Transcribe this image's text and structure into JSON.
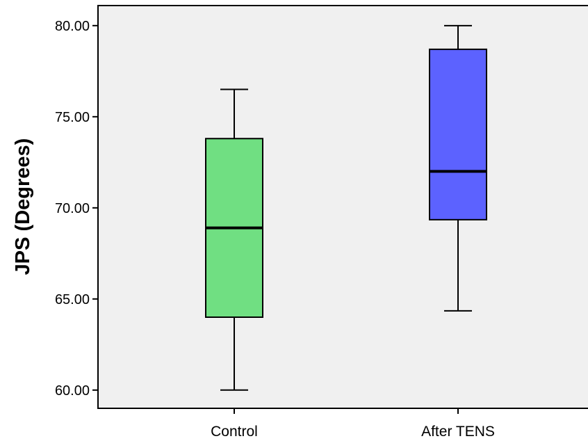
{
  "chart_data": {
    "type": "boxplot",
    "title": "",
    "xlabel": "",
    "ylabel": "JPS (Degrees)",
    "ylim": [
      59.0,
      81.1
    ],
    "yticks": [
      "60.00",
      "65.00",
      "70.00",
      "75.00",
      "80.00"
    ],
    "grid": false,
    "legend": "none",
    "categories": [
      "Control",
      "After TENS"
    ],
    "boxes": [
      {
        "category": "Control",
        "whisker_low": 60.0,
        "q1": 64.0,
        "median": 68.9,
        "q3": 73.8,
        "whisker_high": 76.5,
        "color": "#70df82"
      },
      {
        "category": "After TENS",
        "whisker_low": 64.35,
        "q1": 69.35,
        "median": 72.0,
        "q3": 78.7,
        "whisker_high": 80.0,
        "color": "#5c62ff"
      }
    ],
    "plot_background": "#f0f0f0"
  }
}
